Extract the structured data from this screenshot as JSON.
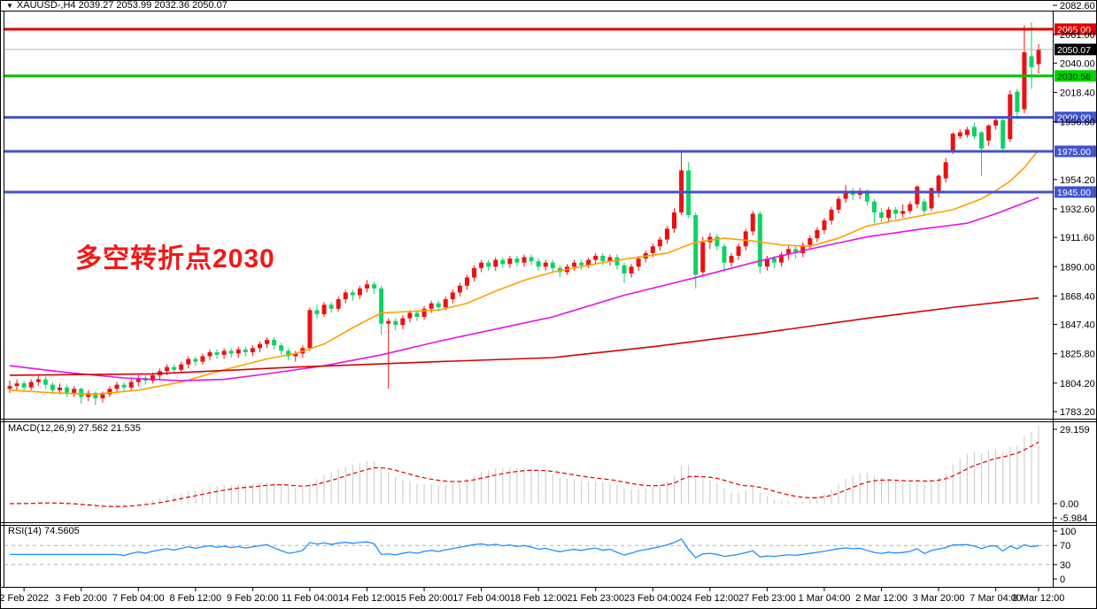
{
  "title_bar": {
    "collapse_icon": "▼",
    "text": "XAUUSD-,H4  2039.27 2053.99 2032.36 2050.07"
  },
  "symbol": "XAUUSD-",
  "timeframe": "H4",
  "ohlc": {
    "open": "2039.27",
    "high": "2053.99",
    "low": "2032.36",
    "close": "2050.07"
  },
  "annotation": {
    "text": "多空转折点2030",
    "color": "#f51616"
  },
  "indicators": {
    "macd_label": "MACD(12,26,9) 27.562 21.535",
    "rsi_label": "RSI(14) 74.5605"
  },
  "axes": {
    "price_ticks": [
      "2082.60",
      "2061.00",
      "2040.00",
      "2018.40",
      "1996.80",
      "1954.20",
      "1932.60",
      "1911.60",
      "1890.00",
      "1868.40",
      "1847.40",
      "1825.80",
      "1804.20",
      "1783.20"
    ],
    "macd_ticks": [
      {
        "label": "29.159",
        "v": 29.159
      },
      {
        "label": "0.00",
        "v": 0
      },
      {
        "label": "-5.984",
        "v": -5.984
      }
    ],
    "rsi_ticks": [
      {
        "label": "100",
        "v": 100
      },
      {
        "label": "70",
        "v": 70
      },
      {
        "label": "30",
        "v": 30
      },
      {
        "label": "0",
        "v": 0
      }
    ],
    "time_labels": [
      {
        "label": "2 Feb 2022",
        "i": 2
      },
      {
        "label": "3 Feb 20:00",
        "i": 10
      },
      {
        "label": "7 Feb 04:00",
        "i": 18
      },
      {
        "label": "8 Feb 12:00",
        "i": 26
      },
      {
        "label": "9 Feb 20:00",
        "i": 34
      },
      {
        "label": "11 Feb 04:00",
        "i": 42
      },
      {
        "label": "14 Feb 12:00",
        "i": 50
      },
      {
        "label": "15 Feb 20:00",
        "i": 58
      },
      {
        "label": "17 Feb 04:00",
        "i": 66
      },
      {
        "label": "18 Feb 12:00",
        "i": 74
      },
      {
        "label": "21 Feb 23:00",
        "i": 82
      },
      {
        "label": "23 Feb 04:00",
        "i": 90
      },
      {
        "label": "24 Feb 12:00",
        "i": 98
      },
      {
        "label": "27 Feb 23:00",
        "i": 106
      },
      {
        "label": "1 Mar 04:00",
        "i": 114
      },
      {
        "label": "2 Mar 12:00",
        "i": 122
      },
      {
        "label": "3 Mar 20:00",
        "i": 130
      },
      {
        "label": "7 Mar 04:00",
        "i": 138
      },
      {
        "label": "8 Mar 12:00",
        "i": 144
      }
    ]
  },
  "hlines": [
    {
      "price": 2065.0,
      "label": "2065.00",
      "color": "#e00000",
      "badge_bg": "#e00000",
      "badge_fg": "#ffffff",
      "width": 3
    },
    {
      "price": 2050.07,
      "label": "2050.07",
      "color": "#b8b8b8",
      "badge_bg": "#000000",
      "badge_fg": "#ffffff",
      "width": 1
    },
    {
      "price": 2030.58,
      "label": "2030.58",
      "color": "#00c400",
      "badge_bg": "#00d400",
      "badge_fg": "#063806",
      "width": 3
    },
    {
      "price": 2000.0,
      "label": "2000.00",
      "color": "#4253cc",
      "badge_bg": "#4253cc",
      "badge_fg": "#ffffff",
      "width": 3
    },
    {
      "price": 1975.0,
      "label": "1975.00",
      "color": "#4253cc",
      "badge_bg": "#4253cc",
      "badge_fg": "#ffffff",
      "width": 3
    },
    {
      "price": 1945.0,
      "label": "1945.00",
      "color": "#4253cc",
      "badge_bg": "#4253cc",
      "badge_fg": "#ffffff",
      "width": 3
    }
  ],
  "chart_data": {
    "type": "candlestick",
    "title": "XAUUSD- H4",
    "price_axis_range": {
      "top": 2082.6,
      "bottom": 1783.2
    },
    "up_color": "#ee0f0f",
    "down_color": "#0fd264",
    "candles": [
      [
        1800,
        1806,
        1797,
        1802
      ],
      [
        1802,
        1807,
        1799,
        1804
      ],
      [
        1804,
        1806,
        1798,
        1801
      ],
      [
        1801,
        1807,
        1799,
        1805
      ],
      [
        1805,
        1810,
        1802,
        1807
      ],
      [
        1807,
        1809,
        1800,
        1803
      ],
      [
        1803,
        1805,
        1796,
        1799
      ],
      [
        1799,
        1804,
        1796,
        1801
      ],
      [
        1801,
        1803,
        1794,
        1797
      ],
      [
        1797,
        1802,
        1794,
        1800
      ],
      [
        1800,
        1801,
        1789,
        1794
      ],
      [
        1794,
        1799,
        1791,
        1797
      ],
      [
        1797,
        1798,
        1788,
        1793
      ],
      [
        1793,
        1798,
        1790,
        1796
      ],
      [
        1796,
        1802,
        1794,
        1800
      ],
      [
        1800,
        1805,
        1797,
        1803
      ],
      [
        1803,
        1805,
        1798,
        1801
      ],
      [
        1801,
        1807,
        1799,
        1805
      ],
      [
        1805,
        1810,
        1802,
        1808
      ],
      [
        1808,
        1810,
        1803,
        1806
      ],
      [
        1806,
        1812,
        1804,
        1810
      ],
      [
        1810,
        1815,
        1807,
        1813
      ],
      [
        1813,
        1818,
        1810,
        1816
      ],
      [
        1816,
        1818,
        1811,
        1814
      ],
      [
        1814,
        1820,
        1812,
        1818
      ],
      [
        1818,
        1824,
        1815,
        1822
      ],
      [
        1822,
        1824,
        1817,
        1820
      ],
      [
        1820,
        1826,
        1818,
        1824
      ],
      [
        1824,
        1829,
        1821,
        1827
      ],
      [
        1827,
        1829,
        1822,
        1825
      ],
      [
        1825,
        1830,
        1822,
        1828
      ],
      [
        1828,
        1830,
        1823,
        1826
      ],
      [
        1826,
        1831,
        1823,
        1829
      ],
      [
        1829,
        1831,
        1824,
        1827
      ],
      [
        1827,
        1832,
        1824,
        1830
      ],
      [
        1830,
        1835,
        1827,
        1833
      ],
      [
        1833,
        1838,
        1830,
        1836
      ],
      [
        1836,
        1838,
        1829,
        1832
      ],
      [
        1832,
        1834,
        1825,
        1828
      ],
      [
        1828,
        1830,
        1821,
        1824
      ],
      [
        1824,
        1828,
        1820,
        1826
      ],
      [
        1826,
        1832,
        1823,
        1830
      ],
      [
        1830,
        1860,
        1828,
        1858
      ],
      [
        1858,
        1862,
        1852,
        1855
      ],
      [
        1855,
        1864,
        1853,
        1862
      ],
      [
        1862,
        1864,
        1856,
        1859
      ],
      [
        1859,
        1868,
        1857,
        1866
      ],
      [
        1866,
        1873,
        1863,
        1871
      ],
      [
        1871,
        1873,
        1865,
        1869
      ],
      [
        1869,
        1876,
        1866,
        1874
      ],
      [
        1874,
        1880,
        1871,
        1877
      ],
      [
        1877,
        1879,
        1870,
        1874
      ],
      [
        1874,
        1876,
        1840,
        1848
      ],
      [
        1848,
        1852,
        1800,
        1850
      ],
      [
        1850,
        1852,
        1843,
        1847
      ],
      [
        1847,
        1854,
        1844,
        1852
      ],
      [
        1852,
        1858,
        1849,
        1856
      ],
      [
        1856,
        1858,
        1850,
        1853
      ],
      [
        1853,
        1861,
        1851,
        1859
      ],
      [
        1859,
        1865,
        1856,
        1863
      ],
      [
        1863,
        1865,
        1857,
        1860
      ],
      [
        1860,
        1868,
        1858,
        1866
      ],
      [
        1866,
        1873,
        1863,
        1871
      ],
      [
        1871,
        1878,
        1868,
        1876
      ],
      [
        1876,
        1884,
        1873,
        1882
      ],
      [
        1882,
        1891,
        1879,
        1889
      ],
      [
        1889,
        1895,
        1886,
        1893
      ],
      [
        1893,
        1895,
        1887,
        1890
      ],
      [
        1890,
        1897,
        1887,
        1895
      ],
      [
        1895,
        1897,
        1889,
        1892
      ],
      [
        1892,
        1898,
        1889,
        1896
      ],
      [
        1896,
        1898,
        1890,
        1893
      ],
      [
        1893,
        1899,
        1890,
        1897
      ],
      [
        1897,
        1899,
        1891,
        1894
      ],
      [
        1894,
        1896,
        1887,
        1890
      ],
      [
        1890,
        1895,
        1887,
        1893
      ],
      [
        1893,
        1895,
        1886,
        1889
      ],
      [
        1889,
        1891,
        1882,
        1886
      ],
      [
        1886,
        1892,
        1884,
        1890
      ],
      [
        1890,
        1895,
        1887,
        1893
      ],
      [
        1893,
        1895,
        1888,
        1891
      ],
      [
        1891,
        1897,
        1889,
        1895
      ],
      [
        1895,
        1900,
        1892,
        1898
      ],
      [
        1898,
        1900,
        1891,
        1894
      ],
      [
        1894,
        1899,
        1891,
        1897
      ],
      [
        1897,
        1899,
        1888,
        1891
      ],
      [
        1891,
        1893,
        1878,
        1885
      ],
      [
        1885,
        1892,
        1882,
        1890
      ],
      [
        1890,
        1898,
        1887,
        1896
      ],
      [
        1896,
        1902,
        1893,
        1900
      ],
      [
        1900,
        1907,
        1897,
        1905
      ],
      [
        1905,
        1912,
        1902,
        1910
      ],
      [
        1910,
        1920,
        1907,
        1918
      ],
      [
        1918,
        1933,
        1915,
        1930
      ],
      [
        1930,
        1975,
        1928,
        1961
      ],
      [
        1961,
        1967,
        1926,
        1928
      ],
      [
        1928,
        1930,
        1874,
        1884
      ],
      [
        1886,
        1912,
        1884,
        1908
      ],
      [
        1908,
        1915,
        1903,
        1912
      ],
      [
        1912,
        1914,
        1902,
        1905
      ],
      [
        1905,
        1907,
        1886,
        1893
      ],
      [
        1893,
        1900,
        1890,
        1898
      ],
      [
        1898,
        1907,
        1895,
        1905
      ],
      [
        1905,
        1918,
        1902,
        1916
      ],
      [
        1916,
        1931,
        1913,
        1929
      ],
      [
        1929,
        1931,
        1885,
        1890
      ],
      [
        1890,
        1898,
        1887,
        1896
      ],
      [
        1896,
        1898,
        1889,
        1893
      ],
      [
        1893,
        1901,
        1890,
        1899
      ],
      [
        1899,
        1905,
        1895,
        1903
      ],
      [
        1903,
        1905,
        1896,
        1900
      ],
      [
        1900,
        1908,
        1897,
        1906
      ],
      [
        1906,
        1913,
        1903,
        1911
      ],
      [
        1911,
        1919,
        1908,
        1917
      ],
      [
        1917,
        1926,
        1914,
        1924
      ],
      [
        1924,
        1934,
        1921,
        1932
      ],
      [
        1932,
        1942,
        1929,
        1940
      ],
      [
        1940,
        1950,
        1937,
        1946
      ],
      [
        1946,
        1948,
        1939,
        1943
      ],
      [
        1943,
        1948,
        1940,
        1946
      ],
      [
        1946,
        1947,
        1935,
        1938
      ],
      [
        1938,
        1940,
        1922,
        1930
      ],
      [
        1930,
        1933,
        1923,
        1926
      ],
      [
        1926,
        1934,
        1923,
        1932
      ],
      [
        1932,
        1934,
        1925,
        1929
      ],
      [
        1929,
        1936,
        1926,
        1931
      ],
      [
        1931,
        1938,
        1929,
        1936
      ],
      [
        1936,
        1950,
        1933,
        1949
      ],
      [
        1938,
        1940,
        1928,
        1931
      ],
      [
        1933,
        1948,
        1931,
        1948
      ],
      [
        1944,
        1958,
        1941,
        1957
      ],
      [
        1955,
        1970,
        1952,
        1967
      ],
      [
        1974,
        1989,
        1973,
        1988
      ],
      [
        1986,
        1991,
        1984,
        1989
      ],
      [
        1987,
        1993,
        1985,
        1991
      ],
      [
        1993,
        1996,
        1984,
        1986
      ],
      [
        1989,
        1990,
        1957,
        1977
      ],
      [
        1983,
        1995,
        1979,
        1994
      ],
      [
        1994,
        2000,
        1991,
        1998
      ],
      [
        1998,
        1999,
        1975,
        1977
      ],
      [
        1984,
        2020,
        1982,
        2017
      ],
      [
        2019,
        2021,
        2000,
        2004
      ],
      [
        2006,
        2068,
        2003,
        2048
      ],
      [
        2045,
        2070,
        2021,
        2037
      ],
      [
        2039.27,
        2053.99,
        2032.36,
        2050.07
      ]
    ],
    "ma_overlays": [
      {
        "name": "ma-fast",
        "color": "#ffa000",
        "points": [
          [
            0,
            1799
          ],
          [
            6,
            1797
          ],
          [
            12,
            1796
          ],
          [
            18,
            1799
          ],
          [
            24,
            1805
          ],
          [
            30,
            1814
          ],
          [
            36,
            1822
          ],
          [
            40,
            1826
          ],
          [
            44,
            1833
          ],
          [
            48,
            1845
          ],
          [
            52,
            1856
          ],
          [
            56,
            1857
          ],
          [
            60,
            1858
          ],
          [
            64,
            1863
          ],
          [
            68,
            1872
          ],
          [
            72,
            1880
          ],
          [
            76,
            1886
          ],
          [
            80,
            1890
          ],
          [
            84,
            1894
          ],
          [
            88,
            1897
          ],
          [
            92,
            1900
          ],
          [
            96,
            1908
          ],
          [
            100,
            1911
          ],
          [
            104,
            1909
          ],
          [
            108,
            1906
          ],
          [
            112,
            1905
          ],
          [
            116,
            1911
          ],
          [
            120,
            1920
          ],
          [
            124,
            1924
          ],
          [
            128,
            1928
          ],
          [
            132,
            1932
          ],
          [
            136,
            1940
          ],
          [
            138,
            1946
          ],
          [
            140,
            1953
          ],
          [
            142,
            1963
          ],
          [
            144,
            1976
          ]
        ]
      },
      {
        "name": "ma-mid",
        "color": "#e612e6",
        "points": [
          [
            0,
            1817
          ],
          [
            8,
            1812
          ],
          [
            16,
            1808
          ],
          [
            24,
            1806
          ],
          [
            30,
            1807
          ],
          [
            36,
            1811
          ],
          [
            44,
            1817
          ],
          [
            52,
            1825
          ],
          [
            60,
            1835
          ],
          [
            68,
            1844
          ],
          [
            76,
            1853
          ],
          [
            86,
            1869
          ],
          [
            96,
            1882
          ],
          [
            104,
            1893
          ],
          [
            112,
            1903
          ],
          [
            120,
            1912
          ],
          [
            128,
            1918
          ],
          [
            134,
            1922
          ],
          [
            138,
            1929
          ],
          [
            144,
            1941
          ]
        ]
      },
      {
        "name": "ma-slow",
        "color": "#d40000",
        "points": [
          [
            0,
            1810
          ],
          [
            20,
            1811
          ],
          [
            40,
            1816
          ],
          [
            60,
            1820
          ],
          [
            76,
            1823
          ],
          [
            90,
            1831
          ],
          [
            105,
            1841
          ],
          [
            120,
            1852
          ],
          [
            132,
            1860
          ],
          [
            144,
            1867
          ]
        ]
      }
    ],
    "macd": {
      "params": "12,26,9",
      "final_main": 27.562,
      "final_signal": 21.535,
      "scale_max": 29.159,
      "scale_min": -5.984,
      "hist_color": "#c8c8c8",
      "signal_color": "#dd0000"
    },
    "rsi": {
      "period": 14,
      "final": 74.5605,
      "color": "#1e90ff",
      "levels": [
        70,
        30
      ],
      "level_color": "#b0b0b0"
    }
  }
}
